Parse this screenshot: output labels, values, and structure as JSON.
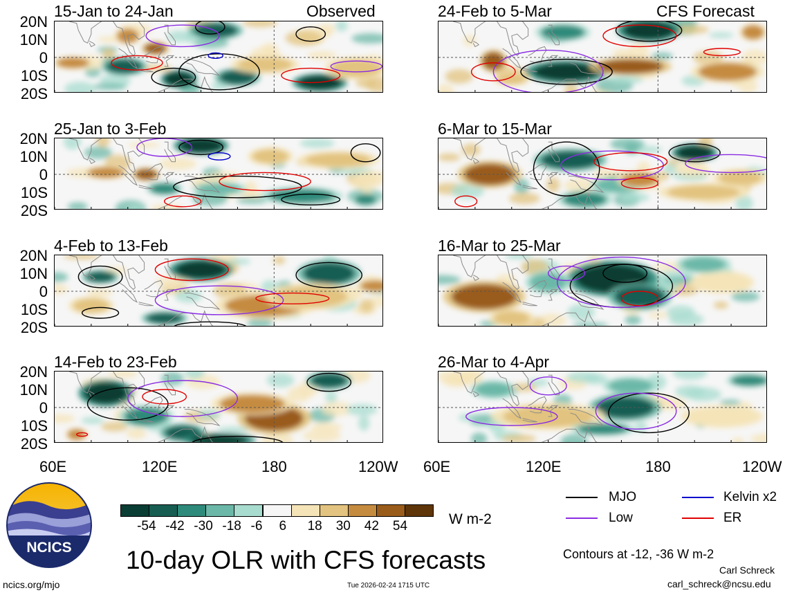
{
  "chart_data": {
    "type": "heatmap",
    "title": "10-day OLR with CFS forecasts",
    "units": "W m-2",
    "contours_note": "Contours at -12, -36 W m-2",
    "x_ticks": [
      "60E",
      "120E",
      "180",
      "120W"
    ],
    "y_ticks": [
      "20N",
      "10N",
      "0",
      "10S",
      "20S"
    ],
    "x_range_deg": [
      60,
      240
    ],
    "y_range_deg": [
      -20,
      20
    ],
    "colorbar": {
      "labels": [
        "-54",
        "-42",
        "-30",
        "-18",
        "-6",
        "6",
        "18",
        "30",
        "42",
        "54"
      ],
      "colors": [
        "#0a3d33",
        "#175d52",
        "#2e8a7a",
        "#6cb8a8",
        "#a8dccf",
        "#f6f6f6",
        "#f5e4b8",
        "#e2c37f",
        "#c58b3f",
        "#9a5c1a",
        "#5e3508"
      ]
    },
    "legend": [
      {
        "label": "MJO",
        "color": "#000000"
      },
      {
        "label": "Kelvin x2",
        "color": "#0000cc"
      },
      {
        "label": "Low",
        "color": "#8a2be2"
      },
      {
        "label": "ER",
        "color": "#e00000"
      }
    ],
    "observed_tag": "Observed",
    "forecast_tag": "CFS Forecast",
    "panels": [
      {
        "title": "15-Jan to 24-Jan",
        "kind": "observed"
      },
      {
        "title": "25-Jan to 3-Feb",
        "kind": "observed"
      },
      {
        "title": "4-Feb to 13-Feb",
        "kind": "observed"
      },
      {
        "title": "14-Feb to 23-Feb",
        "kind": "observed"
      },
      {
        "title": "24-Feb to 5-Mar",
        "kind": "forecast"
      },
      {
        "title": "6-Mar to 15-Mar",
        "kind": "forecast"
      },
      {
        "title": "16-Mar to 25-Mar",
        "kind": "forecast"
      },
      {
        "title": "26-Mar to 4-Apr",
        "kind": "forecast"
      }
    ]
  },
  "logo_text": "NCICS",
  "footer": {
    "site": "ncics.org/mjo",
    "timestamp": "Tue 2026-02-24 1715 UTC",
    "author": "Carl Schreck",
    "email": "carl_schreck@ncsu.edu"
  }
}
